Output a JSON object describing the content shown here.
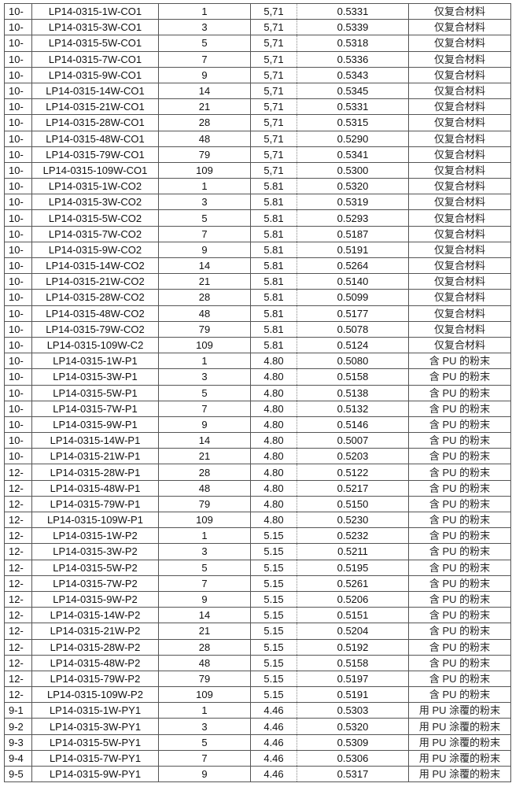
{
  "table": {
    "rows": [
      [
        "10-",
        "LP14-0315-1W-CO1",
        "1",
        "5,71",
        "0.5331",
        "仅复合材料"
      ],
      [
        "10-",
        "LP14-0315-3W-CO1",
        "3",
        "5,71",
        "0.5339",
        "仅复合材料"
      ],
      [
        "10-",
        "LP14-0315-5W-CO1",
        "5",
        "5,71",
        "0.5318",
        "仅复合材料"
      ],
      [
        "10-",
        "LP14-0315-7W-CO1",
        "7",
        "5,71",
        "0.5336",
        "仅复合材料"
      ],
      [
        "10-",
        "LP14-0315-9W-CO1",
        "9",
        "5,71",
        "0.5343",
        "仅复合材料"
      ],
      [
        "10-",
        "LP14-0315-14W-CO1",
        "14",
        "5,71",
        "0.5345",
        "仅复合材料"
      ],
      [
        "10-",
        "LP14-0315-21W-CO1",
        "21",
        "5,71",
        "0.5331",
        "仅复合材料"
      ],
      [
        "10-",
        "LP14-0315-28W-CO1",
        "28",
        "5,71",
        "0.5315",
        "仅复合材料"
      ],
      [
        "10-",
        "LP14-0315-48W-CO1",
        "48",
        "5,71",
        "0.5290",
        "仅复合材料"
      ],
      [
        "10-",
        "LP14-0315-79W-CO1",
        "79",
        "5,71",
        "0.5341",
        "仅复合材料"
      ],
      [
        "10-",
        "LP14-0315-109W-CO1",
        "109",
        "5,71",
        "0.5300",
        "仅复合材料"
      ],
      [
        "10-",
        "LP14-0315-1W-CO2",
        "1",
        "5.81",
        "0.5320",
        "仅复合材料"
      ],
      [
        "10-",
        "LP14-0315-3W-CO2",
        "3",
        "5.81",
        "0.5319",
        "仅复合材料"
      ],
      [
        "10-",
        "LP14-0315-5W-CO2",
        "5",
        "5.81",
        "0.5293",
        "仅复合材料"
      ],
      [
        "10-",
        "LP14-0315-7W-CO2",
        "7",
        "5.81",
        "0.5187",
        "仅复合材料"
      ],
      [
        "10-",
        "LP14-0315-9W-CO2",
        "9",
        "5.81",
        "0.5191",
        "仅复合材料"
      ],
      [
        "10-",
        "LP14-0315-14W-CO2",
        "14",
        "5.81",
        "0.5264",
        "仅复合材料"
      ],
      [
        "10-",
        "LP14-0315-21W-CO2",
        "21",
        "5.81",
        "0.5140",
        "仅复合材料"
      ],
      [
        "10-",
        "LP14-0315-28W-CO2",
        "28",
        "5.81",
        "0.5099",
        "仅复合材料"
      ],
      [
        "10-",
        "LP14-0315-48W-CO2",
        "48",
        "5.81",
        "0.5177",
        "仅复合材料"
      ],
      [
        "10-",
        "LP14-0315-79W-CO2",
        "79",
        "5.81",
        "0.5078",
        "仅复合材料"
      ],
      [
        "10-",
        "LP14-0315-109W-C2",
        "109",
        "5.81",
        "0.5124",
        "仅复合材料"
      ],
      [
        "10-",
        "LP14-0315-1W-P1",
        "1",
        "4.80",
        "0.5080",
        "含 PU 的粉末"
      ],
      [
        "10-",
        "LP14-0315-3W-P1",
        "3",
        "4.80",
        "0.5158",
        "含 PU 的粉末"
      ],
      [
        "10-",
        "LP14-0315-5W-P1",
        "5",
        "4.80",
        "0.5138",
        "含 PU 的粉末"
      ],
      [
        "10-",
        "LP14-0315-7W-P1",
        "7",
        "4.80",
        "0.5132",
        "含 PU 的粉末"
      ],
      [
        "10-",
        "LP14-0315-9W-P1",
        "9",
        "4.80",
        "0.5146",
        "含 PU 的粉末"
      ],
      [
        "10-",
        "LP14-0315-14W-P1",
        "14",
        "4.80",
        "0.5007",
        "含 PU 的粉末"
      ],
      [
        "10-",
        "LP14-0315-21W-P1",
        "21",
        "4.80",
        "0.5203",
        "含 PU 的粉末"
      ],
      [
        "12-",
        "LP14-0315-28W-P1",
        "28",
        "4.80",
        "0.5122",
        "含 PU 的粉末"
      ],
      [
        "12-",
        "LP14-0315-48W-P1",
        "48",
        "4.80",
        "0.5217",
        "含 PU 的粉末"
      ],
      [
        "12-",
        "LP14-0315-79W-P1",
        "79",
        "4.80",
        "0.5150",
        "含 PU 的粉末"
      ],
      [
        "12-",
        "LP14-0315-109W-P1",
        "109",
        "4.80",
        "0.5230",
        "含 PU 的粉末"
      ],
      [
        "12-",
        "LP14-0315-1W-P2",
        "1",
        "5.15",
        "0.5232",
        "含 PU 的粉末"
      ],
      [
        "12-",
        "LP14-0315-3W-P2",
        "3",
        "5.15",
        "0.5211",
        "含 PU 的粉末"
      ],
      [
        "12-",
        "LP14-0315-5W-P2",
        "5",
        "5.15",
        "0.5195",
        "含 PU 的粉末"
      ],
      [
        "12-",
        "LP14-0315-7W-P2",
        "7",
        "5.15",
        "0.5261",
        "含 PU 的粉末"
      ],
      [
        "12-",
        "LP14-0315-9W-P2",
        "9",
        "5.15",
        "0.5206",
        "含 PU 的粉末"
      ],
      [
        "12-",
        "LP14-0315-14W-P2",
        "14",
        "5.15",
        "0.5151",
        "含 PU 的粉末"
      ],
      [
        "12-",
        "LP14-0315-21W-P2",
        "21",
        "5.15",
        "0.5204",
        "含 PU 的粉末"
      ],
      [
        "12-",
        "LP14-0315-28W-P2",
        "28",
        "5.15",
        "0.5192",
        "含 PU 的粉末"
      ],
      [
        "12-",
        "LP14-0315-48W-P2",
        "48",
        "5.15",
        "0.5158",
        "含 PU 的粉末"
      ],
      [
        "12-",
        "LP14-0315-79W-P2",
        "79",
        "5.15",
        "0.5197",
        "含 PU 的粉末"
      ],
      [
        "12-",
        "LP14-0315-109W-P2",
        "109",
        "5.15",
        "0.5191",
        "含 PU 的粉末"
      ],
      [
        "9-1",
        "LP14-0315-1W-PY1",
        "1",
        "4.46",
        "0.5303",
        "用 PU 涂覆的粉末"
      ],
      [
        "9-2",
        "LP14-0315-3W-PY1",
        "3",
        "4.46",
        "0.5320",
        "用 PU 涂覆的粉末"
      ],
      [
        "9-3",
        "LP14-0315-5W-PY1",
        "5",
        "4.46",
        "0.5309",
        "用 PU 涂覆的粉末"
      ],
      [
        "9-4",
        "LP14-0315-7W-PY1",
        "7",
        "4.46",
        "0.5306",
        "用 PU 涂覆的粉末"
      ],
      [
        "9-5",
        "LP14-0315-9W-PY1",
        "9",
        "4.46",
        "0.5317",
        "用 PU 涂覆的粉末"
      ]
    ]
  }
}
